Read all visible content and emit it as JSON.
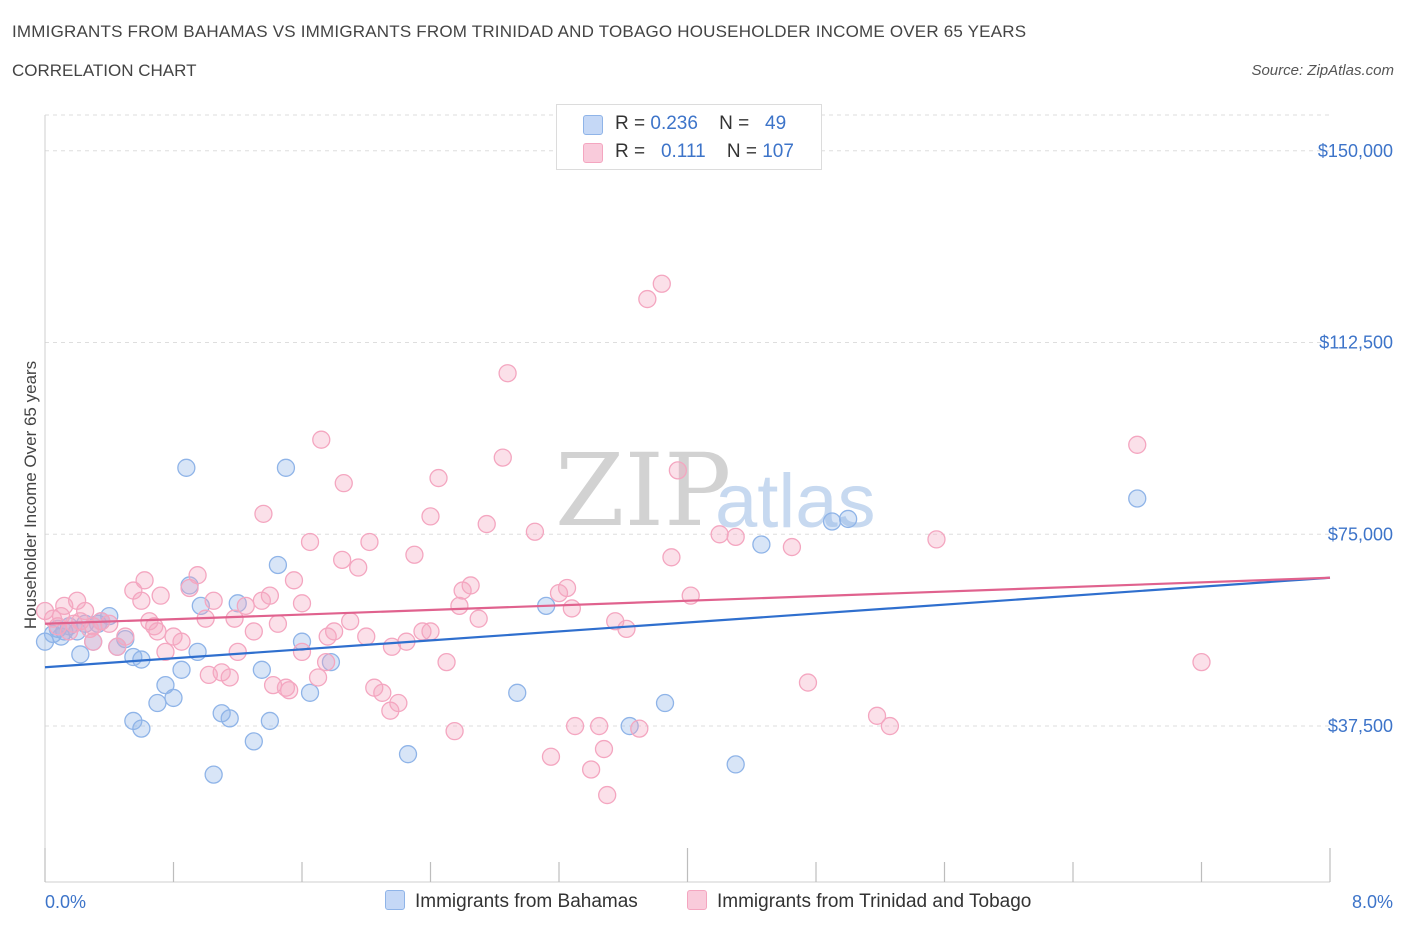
{
  "header": {
    "title": "IMMIGRANTS FROM BAHAMAS VS IMMIGRANTS FROM TRINIDAD AND TOBAGO HOUSEHOLDER INCOME OVER 65 YEARS",
    "subtitle": "CORRELATION CHART",
    "source": "Source: ZipAtlas.com"
  },
  "legend": {
    "rows": [
      {
        "r_label": "R =",
        "r_value": "0.236",
        "n_label": "N =",
        "n_value": "49"
      },
      {
        "r_label": "R =",
        "r_value": "0.111",
        "n_label": "N =",
        "n_value": "107"
      }
    ]
  },
  "watermark": {
    "zip": "ZIP",
    "atlas": "atlas"
  },
  "chart_data": {
    "type": "scatter",
    "ylabel": "Householder Income Over 65 years",
    "xlim": [
      0,
      8.0
    ],
    "ylim": [
      7000,
      157000
    ],
    "x_ticks": [
      0,
      0.8,
      1.6,
      2.4,
      3.2,
      4.0,
      4.8,
      5.6,
      6.4,
      7.2,
      8.0
    ],
    "x_tick_labels": [
      {
        "value": 0,
        "label": "0.0%"
      },
      {
        "value": 8.0,
        "label": "8.0%"
      }
    ],
    "y_ticks": [
      37500,
      75000,
      112500,
      150000
    ],
    "y_tick_labels": [
      "$37,500",
      "$75,000",
      "$112,500",
      "$150,000"
    ],
    "grid": true,
    "series": [
      {
        "name": "Immigrants from Bahamas",
        "color": "#8fb4e8",
        "line_color": "#2f6fce",
        "trend": [
          [
            0,
            49000
          ],
          [
            8.0,
            66500
          ]
        ],
        "points": [
          [
            0.0,
            54000
          ],
          [
            0.05,
            55500
          ],
          [
            0.08,
            56500
          ],
          [
            0.1,
            55000
          ],
          [
            0.12,
            56000
          ],
          [
            0.15,
            57000
          ],
          [
            0.2,
            56000
          ],
          [
            0.25,
            57500
          ],
          [
            0.3,
            54000
          ],
          [
            0.35,
            58000
          ],
          [
            0.4,
            59000
          ],
          [
            0.45,
            53000
          ],
          [
            0.5,
            54500
          ],
          [
            0.55,
            51000
          ],
          [
            0.6,
            50500
          ],
          [
            0.55,
            38500
          ],
          [
            0.6,
            37000
          ],
          [
            0.7,
            42000
          ],
          [
            0.75,
            45500
          ],
          [
            0.8,
            43000
          ],
          [
            0.85,
            48500
          ],
          [
            0.9,
            65000
          ],
          [
            0.95,
            52000
          ],
          [
            0.97,
            61000
          ],
          [
            1.05,
            28000
          ],
          [
            1.1,
            40000
          ],
          [
            1.15,
            39000
          ],
          [
            1.2,
            61500
          ],
          [
            1.3,
            34500
          ],
          [
            1.35,
            48500
          ],
          [
            1.4,
            38500
          ],
          [
            1.45,
            69000
          ],
          [
            1.5,
            88000
          ],
          [
            1.6,
            54000
          ],
          [
            1.65,
            44000
          ],
          [
            1.78,
            50000
          ],
          [
            0.88,
            88000
          ],
          [
            2.26,
            32000
          ],
          [
            2.94,
            44000
          ],
          [
            3.12,
            61000
          ],
          [
            3.64,
            37500
          ],
          [
            3.86,
            42000
          ],
          [
            4.3,
            30000
          ],
          [
            4.46,
            73000
          ],
          [
            4.9,
            77500
          ],
          [
            5.0,
            78000
          ],
          [
            6.8,
            82000
          ],
          [
            0.22,
            51500
          ],
          [
            0.33,
            57500
          ]
        ]
      },
      {
        "name": "Immigrants from Trinidad and Tobago",
        "color": "#f4a6c0",
        "line_color": "#e0628e",
        "trend": [
          [
            0,
            57500
          ],
          [
            8.0,
            66500
          ]
        ],
        "points": [
          [
            0.0,
            60000
          ],
          [
            0.05,
            58500
          ],
          [
            0.08,
            57000
          ],
          [
            0.1,
            59000
          ],
          [
            0.12,
            61000
          ],
          [
            0.15,
            56000
          ],
          [
            0.18,
            57500
          ],
          [
            0.2,
            62000
          ],
          [
            0.22,
            58000
          ],
          [
            0.25,
            60000
          ],
          [
            0.28,
            56500
          ],
          [
            0.3,
            54000
          ],
          [
            0.35,
            58000
          ],
          [
            0.4,
            57500
          ],
          [
            0.45,
            53000
          ],
          [
            0.5,
            55000
          ],
          [
            0.55,
            64000
          ],
          [
            0.6,
            62000
          ],
          [
            0.62,
            66000
          ],
          [
            0.65,
            58000
          ],
          [
            0.7,
            56000
          ],
          [
            0.75,
            52000
          ],
          [
            0.8,
            55000
          ],
          [
            0.85,
            54000
          ],
          [
            0.9,
            64500
          ],
          [
            0.95,
            67000
          ],
          [
            1.0,
            58500
          ],
          [
            1.05,
            62000
          ],
          [
            1.1,
            48000
          ],
          [
            1.15,
            47000
          ],
          [
            1.2,
            52000
          ],
          [
            1.25,
            61000
          ],
          [
            1.3,
            56000
          ],
          [
            1.35,
            62000
          ],
          [
            1.4,
            63000
          ],
          [
            1.45,
            57500
          ],
          [
            1.5,
            45000
          ],
          [
            1.55,
            66000
          ],
          [
            1.6,
            61500
          ],
          [
            1.65,
            73500
          ],
          [
            1.7,
            47000
          ],
          [
            1.75,
            50000
          ],
          [
            1.8,
            56000
          ],
          [
            1.85,
            70000
          ],
          [
            1.9,
            58000
          ],
          [
            1.95,
            68500
          ],
          [
            2.0,
            55000
          ],
          [
            2.05,
            45000
          ],
          [
            2.1,
            44000
          ],
          [
            2.15,
            40500
          ],
          [
            2.2,
            42000
          ],
          [
            2.25,
            54000
          ],
          [
            2.3,
            71000
          ],
          [
            2.35,
            56000
          ],
          [
            2.4,
            78500
          ],
          [
            2.45,
            86000
          ],
          [
            2.5,
            50000
          ],
          [
            2.55,
            36500
          ],
          [
            2.6,
            64000
          ],
          [
            2.65,
            65000
          ],
          [
            2.7,
            58500
          ],
          [
            2.75,
            77000
          ],
          [
            2.85,
            90000
          ],
          [
            2.88,
            106500
          ],
          [
            3.05,
            75500
          ],
          [
            3.15,
            31500
          ],
          [
            3.2,
            63500
          ],
          [
            3.25,
            64500
          ],
          [
            3.3,
            37500
          ],
          [
            3.4,
            29000
          ],
          [
            3.45,
            37500
          ],
          [
            3.5,
            24000
          ],
          [
            3.55,
            58000
          ],
          [
            3.7,
            37000
          ],
          [
            3.9,
            70500
          ],
          [
            4.02,
            63000
          ],
          [
            4.2,
            75000
          ],
          [
            4.3,
            74500
          ],
          [
            4.75,
            46000
          ],
          [
            5.18,
            39500
          ],
          [
            5.26,
            37500
          ],
          [
            5.55,
            74000
          ],
          [
            6.8,
            92500
          ],
          [
            7.2,
            50000
          ],
          [
            3.75,
            121000
          ],
          [
            3.84,
            124000
          ],
          [
            1.72,
            93500
          ],
          [
            1.86,
            85000
          ],
          [
            3.94,
            87500
          ],
          [
            4.65,
            72500
          ],
          [
            1.36,
            79000
          ],
          [
            2.4,
            56000
          ],
          [
            0.3,
            57000
          ],
          [
            0.68,
            57000
          ],
          [
            0.72,
            63000
          ],
          [
            1.02,
            47500
          ],
          [
            1.18,
            58500
          ],
          [
            1.42,
            45500
          ],
          [
            1.52,
            44500
          ],
          [
            1.6,
            52000
          ],
          [
            1.76,
            55000
          ],
          [
            2.16,
            53000
          ],
          [
            2.58,
            61000
          ],
          [
            2.02,
            73500
          ],
          [
            3.48,
            33000
          ],
          [
            3.62,
            56500
          ],
          [
            3.28,
            60500
          ]
        ]
      }
    ]
  }
}
